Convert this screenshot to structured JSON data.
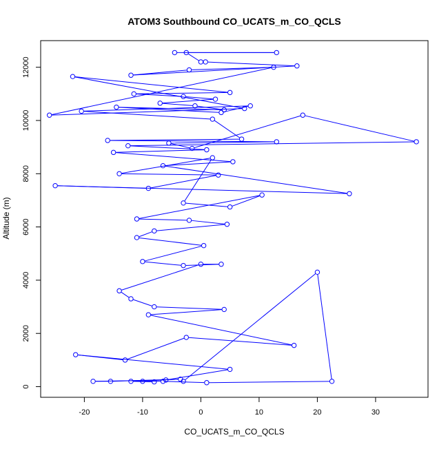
{
  "chart_data": {
    "type": "line",
    "title": "ATOM3 Southbound CO_UCATS_m_CO_QCLS",
    "xlabel": "CO_UCATS_m_CO_QCLS",
    "ylabel": "Altitude (m)",
    "xlim": [
      -27.5,
      39.0
    ],
    "ylim": [
      -400,
      13000
    ],
    "xticks": [
      "-20",
      "-10",
      "0",
      "10",
      "20",
      "30"
    ],
    "xtick_values": [
      -20,
      -10,
      0,
      10,
      20,
      30
    ],
    "yticks": [
      "0",
      "2000",
      "4000",
      "6000",
      "8000",
      "10000",
      "12000"
    ],
    "ytick_values": [
      0,
      2000,
      4000,
      6000,
      8000,
      10000,
      12000
    ],
    "line_color": "#0000ff",
    "marker": "open-circle",
    "grid": false,
    "legend": "none",
    "series": [
      {
        "x": [
          -4.5,
          13,
          -2.5,
          0,
          0.8,
          16.5,
          -12,
          -2,
          12.5,
          -26,
          7.5,
          -22,
          5,
          -11.5,
          -3,
          2.5,
          -7,
          -1,
          4,
          -14.5,
          3.5,
          8.5,
          -20.5,
          2,
          7,
          -16,
          13,
          -5.5,
          -1.5,
          17.5,
          37,
          -12.5,
          1,
          -15,
          5.5,
          -6.5,
          25.5,
          -25,
          -9,
          3,
          -14,
          2,
          -3,
          5,
          10.5,
          -11,
          -2,
          4.5,
          -8,
          -11,
          0.5,
          -10,
          -3,
          3.5,
          0,
          -14,
          -12,
          -8,
          4,
          -9,
          16,
          -2.5,
          -13,
          -21.5,
          5,
          -6,
          -18.5,
          -15.5,
          -3.5,
          -12,
          -8,
          -10,
          -6.5,
          1,
          22.5,
          20,
          -3
        ],
        "y": [
          12550,
          12550,
          12550,
          12200,
          12200,
          12050,
          11700,
          11900,
          12000,
          10200,
          10450,
          11650,
          11050,
          11000,
          10900,
          10800,
          10650,
          10550,
          10400,
          10500,
          10300,
          10550,
          10350,
          10050,
          9300,
          9250,
          9200,
          9150,
          8950,
          10200,
          9200,
          9050,
          8900,
          8800,
          8450,
          8300,
          7250,
          7550,
          7450,
          7950,
          8000,
          8600,
          6900,
          6750,
          7200,
          6300,
          6250,
          6100,
          5850,
          5600,
          5300,
          4700,
          4550,
          4600,
          4600,
          3600,
          3300,
          3000,
          2900,
          2700,
          1550,
          1850,
          1000,
          1200,
          650,
          250,
          200,
          200,
          280,
          200,
          180,
          200,
          200,
          150,
          200,
          4300,
          200
        ]
      }
    ]
  }
}
